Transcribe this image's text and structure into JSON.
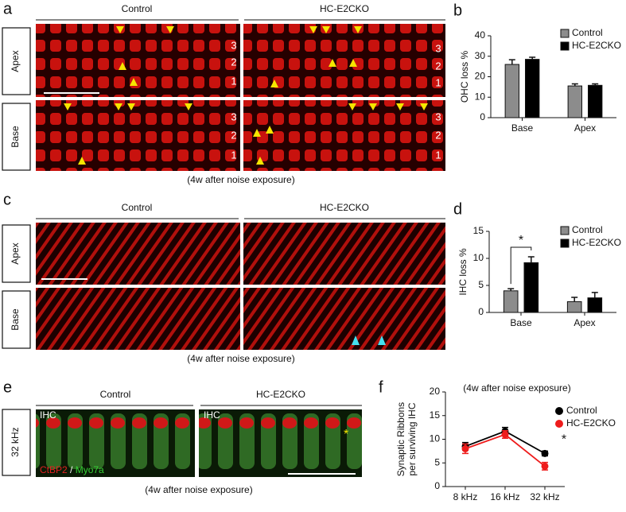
{
  "figure": {
    "a": {
      "letter": "a",
      "groups": [
        "Control",
        "HC-E2CKO"
      ],
      "rows": [
        "Apex",
        "Base"
      ],
      "row_numbers": [
        "3",
        "2",
        "1"
      ],
      "caption": "(4w after noise exposure)"
    },
    "b": {
      "letter": "b"
    },
    "c": {
      "letter": "c",
      "groups": [
        "Control",
        "HC-E2CKO"
      ],
      "rows": [
        "Apex",
        "Base"
      ],
      "caption": "(4w after noise exposure)"
    },
    "d": {
      "letter": "d"
    },
    "e": {
      "letter": "e",
      "groups": [
        "Control",
        "HC-E2CKO"
      ],
      "rows": [
        "32 kHz"
      ],
      "image_label": "IHC",
      "marker": "*",
      "stains": [
        "CtBP2",
        " / ",
        "Myo7a"
      ],
      "caption": "(4w after noise exposure)"
    },
    "f": {
      "letter": "f"
    }
  },
  "chart_data": [
    {
      "type": "bar",
      "ylabel": "OHC loss %",
      "categories": [
        "Base",
        "Apex"
      ],
      "series": [
        {
          "name": "Control",
          "color": "#8c8c8c",
          "values": [
            26,
            15.5
          ],
          "errors": [
            2.3,
            1
          ]
        },
        {
          "name": "HC-E2CKO",
          "color": "#000000",
          "values": [
            28.5,
            15.8
          ],
          "errors": [
            1,
            0.7
          ]
        }
      ],
      "ylim": [
        0,
        40
      ],
      "yticks": [
        0,
        10,
        20,
        30,
        40
      ]
    },
    {
      "type": "bar",
      "ylabel": "IHC loss %",
      "categories": [
        "Base",
        "Apex"
      ],
      "series": [
        {
          "name": "Control",
          "color": "#8c8c8c",
          "values": [
            4,
            2
          ],
          "errors": [
            0.4,
            0.8
          ]
        },
        {
          "name": "HC-E2CKO",
          "color": "#000000",
          "values": [
            9.2,
            2.7
          ],
          "errors": [
            1.1,
            1
          ]
        }
      ],
      "ylim": [
        0,
        15
      ],
      "yticks": [
        0,
        5,
        10,
        15
      ],
      "annotation": "*"
    },
    {
      "type": "line",
      "title": "(4w after noise exposure)",
      "ylabel": [
        "Synaptic Ribbons",
        "per surviving IHC"
      ],
      "categories": [
        "8 kHz",
        "16 kHz",
        "32 kHz"
      ],
      "series": [
        {
          "name": "Control",
          "color": "#000000",
          "values": [
            8.5,
            11.7,
            7
          ],
          "errors": [
            0.8,
            0.8,
            0.5
          ]
        },
        {
          "name": "HC-E2CKO",
          "color": "#ee1c1c",
          "values": [
            8,
            11,
            4.3
          ],
          "errors": [
            1,
            0.8,
            0.8
          ]
        }
      ],
      "ylim": [
        0,
        20
      ],
      "yticks": [
        0,
        5,
        10,
        15,
        20
      ],
      "annotation": "*"
    }
  ]
}
